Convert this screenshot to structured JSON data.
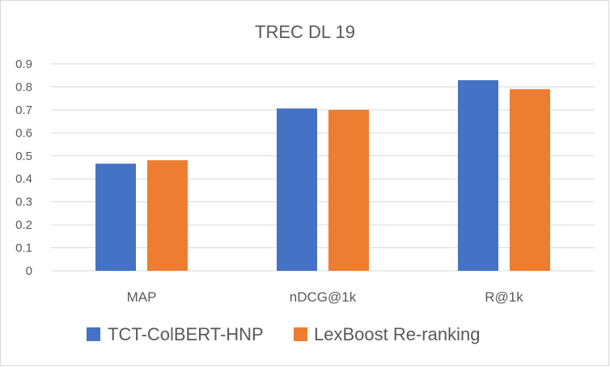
{
  "chart_data": {
    "type": "bar",
    "title": "TREC DL 19",
    "categories": [
      "MAP",
      "nDCG@1k",
      "R@1k"
    ],
    "series": [
      {
        "name": "TCT-ColBERT-HNP",
        "color": "#4472C4",
        "values": [
          0.466,
          0.706,
          0.829
        ]
      },
      {
        "name": "LexBoost Re-ranking",
        "color": "#ED7D31",
        "values": [
          0.481,
          0.7,
          0.79
        ]
      }
    ],
    "yticks": [
      "0",
      "0.1",
      "0.2",
      "0.3",
      "0.4",
      "0.5",
      "0.6",
      "0.7",
      "0.8",
      "0.9"
    ],
    "ylim": [
      0,
      0.9
    ],
    "grid": true,
    "legend": "bottom"
  }
}
